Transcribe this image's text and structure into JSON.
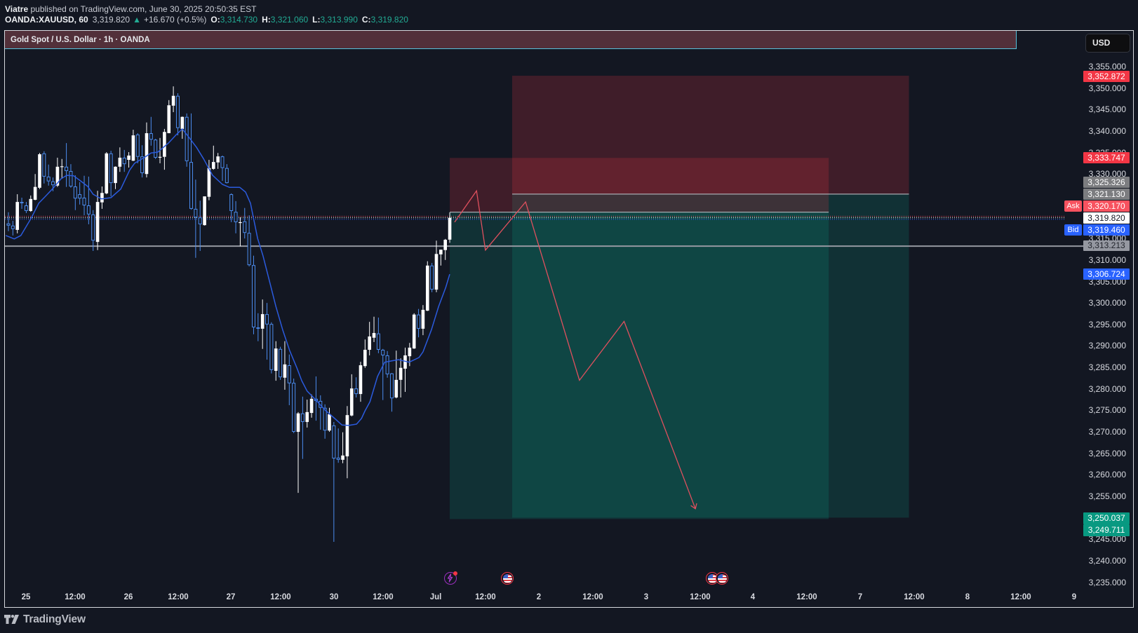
{
  "header": {
    "author": "Viatre",
    "published": "published on TradingView.com, June 30, 2025 20:50:35 EST",
    "symbol": "OANDA:XAUUSD, 60",
    "last": "3,319.820",
    "direction_glyph": "▲",
    "change": "+16.670 (+0.5%)",
    "o_label": "O:",
    "open": "3,314.730",
    "h_label": "H:",
    "high": "3,321.060",
    "l_label": "L:",
    "low": "3,313.990",
    "c_label": "C:",
    "close": "3,319.820"
  },
  "legend": {
    "title": "Gold Spot / U.S. Dollar · 1h · OANDA"
  },
  "currency_button": "USD",
  "price_axis": {
    "ticks": [
      "3,355.000",
      "3,350.000",
      "3,345.000",
      "3,340.000",
      "3,335.000",
      "3,330.000",
      "3,325.000",
      "3,320.000",
      "3,315.000",
      "3,310.000",
      "3,305.000",
      "3,300.000",
      "3,295.000",
      "3,290.000",
      "3,285.000",
      "3,280.000",
      "3,275.000",
      "3,270.000",
      "3,265.000",
      "3,260.000",
      "3,255.000",
      "3,250.000",
      "3,245.000",
      "3,240.000",
      "3,235.000"
    ]
  },
  "price_labels": [
    {
      "value": "3,352.872",
      "role": "stop-loss-large"
    },
    {
      "value": "3,333.747",
      "role": "stop-loss-small"
    },
    {
      "value": "3,325.326",
      "role": "entry-large"
    },
    {
      "value": "3,321.130",
      "role": "entry-small"
    },
    {
      "value": "3,320.170",
      "role": "ask",
      "tag": "Ask"
    },
    {
      "value": "3,319.820",
      "role": "last-price"
    },
    {
      "value": "3,319.460",
      "role": "bid",
      "tag": "Bid"
    },
    {
      "value": "3,313.213",
      "role": "horizontal-line"
    },
    {
      "value": "3,306.724",
      "role": "moving-average"
    },
    {
      "value": "3,250.037",
      "role": "target-large"
    },
    {
      "value": "3,249.711",
      "role": "target-small"
    }
  ],
  "time_axis": {
    "labels": [
      "25",
      "12:00",
      "26",
      "12:00",
      "27",
      "12:00",
      "30",
      "12:00",
      "Jul",
      "12:00",
      "2",
      "12:00",
      "3",
      "12:00",
      "4",
      "12:00",
      "7",
      "12:00",
      "8",
      "12:00",
      "9"
    ]
  },
  "events": [
    {
      "icon": "lightning-icon",
      "kind": "economic-event"
    },
    {
      "icon": "us-flag-icon",
      "kind": "us-event"
    },
    {
      "icon": "us-flag-icon",
      "kind": "us-event"
    },
    {
      "icon": "us-flag-icon",
      "kind": "us-event"
    }
  ],
  "branding": {
    "logo_text": "TradingView"
  },
  "colors": {
    "background": "#131722",
    "up_candle": "#ffffff",
    "down_candle": "#4c8df0",
    "moving_average": "#2b5bde",
    "stop_zone": "rgba(242,54,69,0.2)",
    "target_zone": "rgba(8,153,129,0.2)",
    "projection": "#e0505e",
    "ask": "#f7525f",
    "bid": "#2962ff",
    "last": "#ffffff",
    "hline": "#9598a1",
    "entry_line": "#a6a9b0"
  },
  "chart_data": {
    "type": "candlestick",
    "title": "Gold Spot / U.S. Dollar · 1h · OANDA",
    "symbol": "OANDA:XAUUSD",
    "interval": "60",
    "xlabel": "",
    "ylabel": "USD",
    "ylim": [
      3232,
      3357
    ],
    "x_tick_labels": [
      "25",
      "12:00",
      "26",
      "12:00",
      "27",
      "12:00",
      "30",
      "12:00",
      "Jul",
      "12:00",
      "2",
      "12:00",
      "3",
      "12:00",
      "4",
      "12:00",
      "7",
      "12:00",
      "8",
      "12:00",
      "9"
    ],
    "y_tick_step": 5,
    "grid": false,
    "ohlc_fields": [
      "open",
      "high",
      "low",
      "close"
    ],
    "ohlc": [
      [
        3318.5,
        3321.1,
        3316.7,
        3318.0
      ],
      [
        3318.0,
        3319.1,
        3315.7,
        3317.2
      ],
      [
        3317.0,
        3325.3,
        3316.2,
        3323.5
      ],
      [
        3323.5,
        3324.5,
        3321.9,
        3323.2
      ],
      [
        3322.7,
        3323.5,
        3320.9,
        3321.4
      ],
      [
        3321.4,
        3325.0,
        3321.2,
        3324.2
      ],
      [
        3324.0,
        3330.0,
        3323.9,
        3327.0
      ],
      [
        3326.8,
        3334.9,
        3326.5,
        3334.6
      ],
      [
        3334.8,
        3335.3,
        3327.8,
        3329.4
      ],
      [
        3329.4,
        3332.2,
        3327.3,
        3328.3
      ],
      [
        3328.3,
        3329.2,
        3326.0,
        3327.4
      ],
      [
        3327.3,
        3333.8,
        3327.0,
        3331.7
      ],
      [
        3331.7,
        3333.5,
        3328.9,
        3331.8
      ],
      [
        3331.7,
        3337.2,
        3327.0,
        3330.7
      ],
      [
        3330.7,
        3332.3,
        3326.8,
        3327.1
      ],
      [
        3327.1,
        3329.7,
        3321.6,
        3324.3
      ],
      [
        3325.3,
        3328.1,
        3322.9,
        3324.3
      ],
      [
        3324.5,
        3329.6,
        3320.4,
        3322.7
      ],
      [
        3322.7,
        3329.4,
        3318.3,
        3320.6
      ],
      [
        3320.6,
        3321.6,
        3312.1,
        3314.5
      ],
      [
        3314.2,
        3326.1,
        3312.3,
        3323.5
      ],
      [
        3323.4,
        3327.1,
        3321.9,
        3325.6
      ],
      [
        3325.5,
        3335.1,
        3325.3,
        3334.8
      ],
      [
        3334.8,
        3335.4,
        3324.8,
        3327.9
      ],
      [
        3327.9,
        3331.8,
        3326.5,
        3331.7
      ],
      [
        3331.7,
        3336.2,
        3330.5,
        3333.8
      ],
      [
        3333.8,
        3335.6,
        3330.5,
        3332.3
      ],
      [
        3333.3,
        3335.1,
        3331.5,
        3334.3
      ],
      [
        3333.1,
        3340.3,
        3333.0,
        3339.0
      ],
      [
        3339.2,
        3339.5,
        3332.5,
        3334.0
      ],
      [
        3334.1,
        3336.7,
        3329.2,
        3330.2
      ],
      [
        3330.0,
        3342.0,
        3329.2,
        3339.5
      ],
      [
        3339.5,
        3343.3,
        3336.6,
        3338.0
      ],
      [
        3338.0,
        3338.2,
        3333.5,
        3333.8
      ],
      [
        3333.8,
        3338.4,
        3332.5,
        3334.0
      ],
      [
        3334.0,
        3340.5,
        3331.0,
        3339.8
      ],
      [
        3339.5,
        3347.2,
        3339.5,
        3346.0
      ],
      [
        3345.9,
        3350.4,
        3344.4,
        3348.2
      ],
      [
        3348.2,
        3348.8,
        3339.0,
        3340.7
      ],
      [
        3340.5,
        3343.4,
        3338.2,
        3343.3
      ],
      [
        3343.3,
        3344.1,
        3331.7,
        3333.0
      ],
      [
        3332.8,
        3344.1,
        3321.7,
        3321.9
      ],
      [
        3321.9,
        3328.7,
        3310.5,
        3319.9
      ],
      [
        3319.9,
        3323.8,
        3312.1,
        3318.3
      ],
      [
        3318.1,
        3324.8,
        3318.0,
        3324.8
      ],
      [
        3324.7,
        3333.3,
        3323.9,
        3331.4
      ],
      [
        3331.2,
        3336.6,
        3331.0,
        3332.8
      ],
      [
        3332.7,
        3334.9,
        3331.2,
        3334.1
      ],
      [
        3334.1,
        3334.3,
        3328.4,
        3331.4
      ],
      [
        3331.4,
        3332.3,
        3327.8,
        3327.9
      ],
      [
        3325.3,
        3325.5,
        3318.8,
        3321.4
      ],
      [
        3321.2,
        3323.7,
        3316.2,
        3318.8
      ],
      [
        3318.6,
        3319.9,
        3313.2,
        3318.8
      ],
      [
        3319.0,
        3322.1,
        3315.0,
        3316.3
      ],
      [
        3316.3,
        3320.4,
        3308.5,
        3308.8
      ],
      [
        3308.8,
        3311.0,
        3292.7,
        3294.3
      ],
      [
        3294.3,
        3297.6,
        3291.1,
        3294.0
      ],
      [
        3294.0,
        3300.8,
        3289.3,
        3297.4
      ],
      [
        3297.4,
        3300.0,
        3286.8,
        3295.0
      ],
      [
        3295.1,
        3295.5,
        3283.6,
        3284.4
      ],
      [
        3284.2,
        3291.1,
        3281.9,
        3289.4
      ],
      [
        3289.3,
        3289.8,
        3282.1,
        3282.7
      ],
      [
        3282.6,
        3291.1,
        3279.8,
        3285.7
      ],
      [
        3285.5,
        3288.0,
        3276.2,
        3281.3
      ],
      [
        3281.4,
        3282.4,
        3269.7,
        3270.0
      ],
      [
        3270.0,
        3274.6,
        3255.8,
        3274.3
      ],
      [
        3274.3,
        3278.2,
        3263.7,
        3272.3
      ],
      [
        3272.3,
        3277.5,
        3271.0,
        3274.6
      ],
      [
        3274.4,
        3278.7,
        3273.3,
        3277.7
      ],
      [
        3277.7,
        3282.9,
        3272.6,
        3277.2
      ],
      [
        3277.2,
        3278.5,
        3270.5,
        3275.6
      ],
      [
        3275.6,
        3276.4,
        3268.4,
        3270.3
      ],
      [
        3270.3,
        3275.6,
        3270.0,
        3274.1
      ],
      [
        3271.5,
        3272.3,
        3244.4,
        3263.8
      ],
      [
        3264.0,
        3270.8,
        3262.8,
        3263.5
      ],
      [
        3263.5,
        3269.9,
        3262.7,
        3264.5
      ],
      [
        3264.3,
        3276.0,
        3259.2,
        3273.9
      ],
      [
        3273.8,
        3283.4,
        3273.6,
        3280.1
      ],
      [
        3280.1,
        3282.7,
        3278.0,
        3278.8
      ],
      [
        3278.8,
        3286.3,
        3277.0,
        3285.5
      ],
      [
        3285.3,
        3291.5,
        3284.9,
        3289.1
      ],
      [
        3289.1,
        3295.6,
        3287.8,
        3292.2
      ],
      [
        3291.9,
        3296.8,
        3290.9,
        3293.0
      ],
      [
        3292.9,
        3296.6,
        3288.3,
        3289.1
      ],
      [
        3289.1,
        3289.3,
        3277.4,
        3287.8
      ],
      [
        3287.8,
        3288.8,
        3282.6,
        3283.4
      ],
      [
        3283.6,
        3283.7,
        3274.7,
        3277.8
      ],
      [
        3278.0,
        3288.9,
        3277.8,
        3282.1
      ],
      [
        3282.1,
        3287.1,
        3278.0,
        3284.9
      ],
      [
        3284.7,
        3289.6,
        3279.3,
        3287.8
      ],
      [
        3287.6,
        3290.7,
        3285.3,
        3289.6
      ],
      [
        3289.4,
        3297.6,
        3289.3,
        3297.3
      ],
      [
        3297.3,
        3298.6,
        3292.0,
        3294.0
      ],
      [
        3294.0,
        3299.5,
        3292.5,
        3298.4
      ],
      [
        3298.2,
        3309.7,
        3298.1,
        3308.7
      ],
      [
        3308.7,
        3309.3,
        3302.5,
        3303.1
      ],
      [
        3303.1,
        3314.5,
        3302.5,
        3311.4
      ],
      [
        3311.3,
        3312.4,
        3308.7,
        3312.4
      ],
      [
        3312.3,
        3314.9,
        3310.0,
        3314.7
      ],
      [
        3314.73,
        3321.06,
        3313.99,
        3319.82
      ]
    ],
    "moving_average": {
      "last_value": 3306.724,
      "points": [
        [
          -0.6,
          3315.7
        ],
        [
          1.3,
          3314.9
        ],
        [
          2.8,
          3315.7
        ],
        [
          5.2,
          3319.9
        ],
        [
          6.8,
          3323.2
        ],
        [
          8.3,
          3324.8
        ],
        [
          10.2,
          3326.9
        ],
        [
          11.8,
          3328.9
        ],
        [
          13.1,
          3329.7
        ],
        [
          14.6,
          3329.6
        ],
        [
          16.2,
          3328.4
        ],
        [
          17.8,
          3327.1
        ],
        [
          19.0,
          3325.3
        ],
        [
          20.9,
          3324.2
        ],
        [
          23.0,
          3324.5
        ],
        [
          25.2,
          3326.5
        ],
        [
          27.2,
          3330.9
        ],
        [
          28.3,
          3332.5
        ],
        [
          30.4,
          3333.8
        ],
        [
          32.0,
          3334.9
        ],
        [
          33.5,
          3335.1
        ],
        [
          35.9,
          3337.2
        ],
        [
          37.5,
          3339.0
        ],
        [
          39.0,
          3340.5
        ],
        [
          40.6,
          3338.4
        ],
        [
          42.2,
          3336.2
        ],
        [
          43.8,
          3333.5
        ],
        [
          45.8,
          3329.7
        ],
        [
          48.0,
          3327.6
        ],
        [
          49.6,
          3326.9
        ],
        [
          51.9,
          3326.9
        ],
        [
          53.2,
          3325.8
        ],
        [
          54.3,
          3323.2
        ],
        [
          55.9,
          3315.0
        ],
        [
          57.1,
          3311.0
        ],
        [
          58.4,
          3305.7
        ],
        [
          60.0,
          3299.2
        ],
        [
          61.5,
          3293.8
        ],
        [
          63.1,
          3288.9
        ],
        [
          64.7,
          3284.9
        ],
        [
          65.8,
          3281.9
        ],
        [
          67.0,
          3279.5
        ],
        [
          68.9,
          3277.5
        ],
        [
          71.0,
          3275.1
        ],
        [
          73.2,
          3273.1
        ],
        [
          74.8,
          3271.6
        ],
        [
          76.3,
          3271.5
        ],
        [
          78.1,
          3271.8
        ],
        [
          79.2,
          3273.1
        ],
        [
          80.0,
          3274.9
        ],
        [
          81.1,
          3277.0
        ],
        [
          82.8,
          3282.9
        ],
        [
          84.4,
          3286.2
        ],
        [
          85.9,
          3286.5
        ],
        [
          87.5,
          3286.8
        ],
        [
          89.9,
          3286.2
        ],
        [
          92.1,
          3287.3
        ],
        [
          93.0,
          3288.6
        ],
        [
          94.9,
          3293.8
        ],
        [
          96.5,
          3299.2
        ],
        [
          98.1,
          3303.6
        ],
        [
          99.0,
          3306.7
        ]
      ]
    },
    "positions": [
      {
        "side": "short",
        "start_bar": 113,
        "end_bar": 202,
        "entry": 3325.326,
        "stop": 3352.872,
        "target": 3250.037
      },
      {
        "side": "short",
        "start_bar": 99,
        "end_bar": 184,
        "entry": 3321.13,
        "stop": 3333.747,
        "target": 3249.711
      }
    ],
    "horizontal_line": 3313.213,
    "quote": {
      "ask": 3320.17,
      "last": 3319.82,
      "bid": 3319.46
    },
    "projection_path": [
      [
        100.1,
        3318.8
      ],
      [
        105.0,
        3326.1
      ],
      [
        107.0,
        3312.3
      ],
      [
        116.0,
        3323.5
      ],
      [
        128.1,
        3282.0
      ],
      [
        138.1,
        3295.7
      ],
      [
        154.1,
        3252.1
      ]
    ]
  }
}
